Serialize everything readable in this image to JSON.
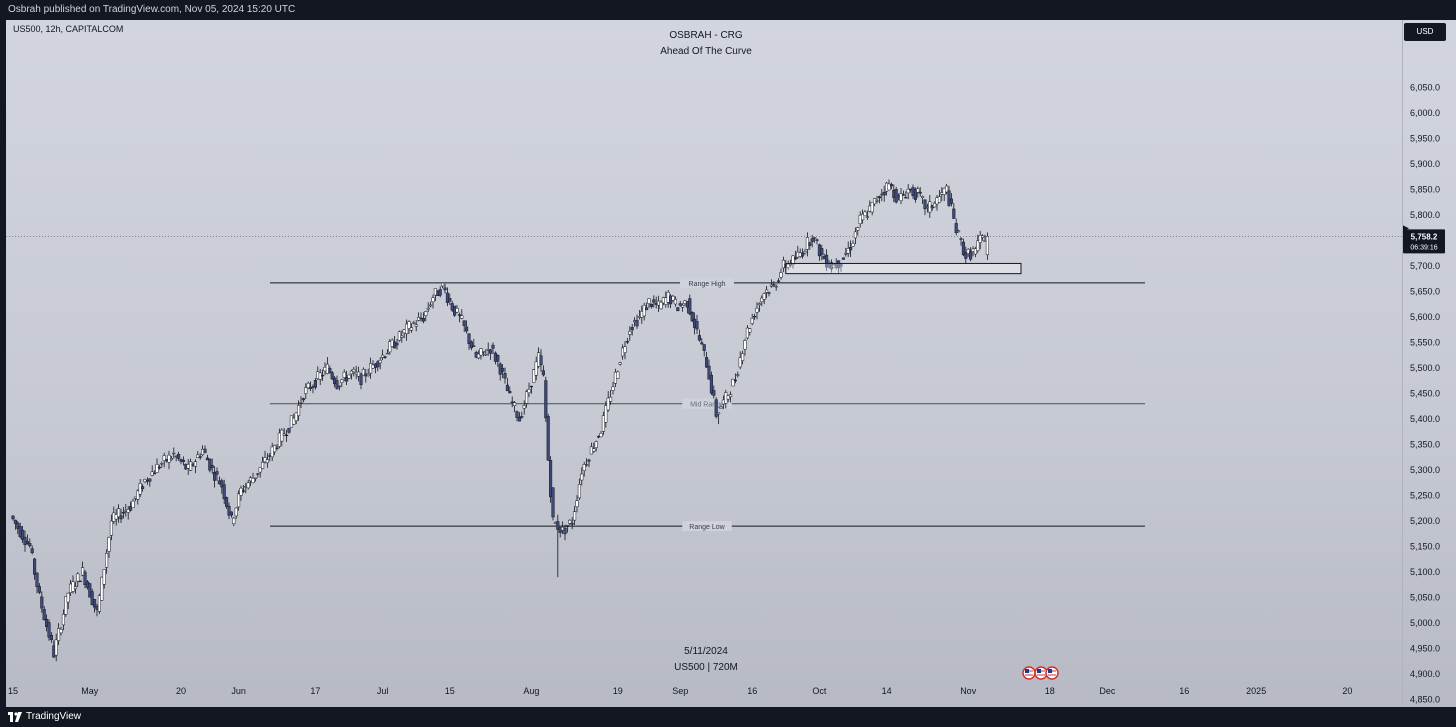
{
  "header": {
    "published_text": "Osbrah published on TradingView.com, Nov 05, 2024 15:20 UTC"
  },
  "chart": {
    "symbol_info": "US500, 12h, CAPITALCOM",
    "title": "OSBRAH - CRG",
    "subtitle": "Ahead Of The Curve",
    "currency_button": "USD",
    "bottom_date": "5/11/2024",
    "bottom_symbol": "US500 | 720M"
  },
  "footer": {
    "brand": "TradingView"
  },
  "chart_data": {
    "type": "candlestick",
    "y_range": [
      4830,
      6100
    ],
    "y_ticks": [
      "6,050.0",
      "6,000.0",
      "5,950.0",
      "5,900.0",
      "5,850.0",
      "5,800.0",
      "5,700.0",
      "5,650.0",
      "5,600.0",
      "5,550.0",
      "5,500.0",
      "5,450.0",
      "5,400.0",
      "5,350.0",
      "5,300.0",
      "5,250.0",
      "5,200.0",
      "5,150.0",
      "5,100.0",
      "5,050.0",
      "5,000.0",
      "4,950.0",
      "4,900.0",
      "4,850.0"
    ],
    "x_ticks": [
      {
        "label": "15",
        "d": 0
      },
      {
        "label": "May",
        "d": 16
      },
      {
        "label": "20",
        "d": 35
      },
      {
        "label": "Jun",
        "d": 47
      },
      {
        "label": "17",
        "d": 63
      },
      {
        "label": "Jul",
        "d": 77
      },
      {
        "label": "15",
        "d": 91
      },
      {
        "label": "Aug",
        "d": 108
      },
      {
        "label": "19",
        "d": 126
      },
      {
        "label": "Sep",
        "d": 139
      },
      {
        "label": "16",
        "d": 154
      },
      {
        "label": "Oct",
        "d": 168
      },
      {
        "label": "14",
        "d": 182
      },
      {
        "label": "Nov",
        "d": 199
      },
      {
        "label": "18",
        "d": 216
      },
      {
        "label": "Dec",
        "d": 228
      },
      {
        "label": "16",
        "d": 244
      },
      {
        "label": "2025",
        "d": 259
      },
      {
        "label": "20",
        "d": 278
      }
    ],
    "current_price": {
      "value": 5758.2,
      "label": "5,758.2",
      "countdown": "06:39:16"
    },
    "levels": [
      {
        "name": "Range High",
        "value": 5667
      },
      {
        "name": "Mid Range",
        "value": 5430
      },
      {
        "name": "Range Low",
        "value": 5190
      }
    ],
    "zone": {
      "top": 5705,
      "bottom": 5685,
      "start_d": 161,
      "end_d": 210
    },
    "anchors": [
      [
        0,
        5210
      ],
      [
        4,
        5150
      ],
      [
        6,
        5050
      ],
      [
        9,
        4940
      ],
      [
        12,
        5060
      ],
      [
        15,
        5100
      ],
      [
        18,
        5020
      ],
      [
        21,
        5200
      ],
      [
        25,
        5230
      ],
      [
        28,
        5280
      ],
      [
        31,
        5310
      ],
      [
        34,
        5330
      ],
      [
        37,
        5300
      ],
      [
        40,
        5340
      ],
      [
        42,
        5300
      ],
      [
        44,
        5270
      ],
      [
        46,
        5200
      ],
      [
        48,
        5260
      ],
      [
        51,
        5290
      ],
      [
        54,
        5330
      ],
      [
        56,
        5360
      ],
      [
        59,
        5400
      ],
      [
        61,
        5450
      ],
      [
        64,
        5480
      ],
      [
        66,
        5500
      ],
      [
        68,
        5470
      ],
      [
        71,
        5490
      ],
      [
        73,
        5480
      ],
      [
        75,
        5500
      ],
      [
        77,
        5520
      ],
      [
        80,
        5550
      ],
      [
        83,
        5580
      ],
      [
        86,
        5600
      ],
      [
        88,
        5640
      ],
      [
        90,
        5660
      ],
      [
        92,
        5620
      ],
      [
        94,
        5590
      ],
      [
        97,
        5520
      ],
      [
        100,
        5540
      ],
      [
        102,
        5500
      ],
      [
        104,
        5440
      ],
      [
        106,
        5400
      ],
      [
        108,
        5460
      ],
      [
        110,
        5520
      ],
      [
        111,
        5480
      ],
      [
        112,
        5320
      ],
      [
        113,
        5200
      ],
      [
        115,
        5180
      ],
      [
        117,
        5200
      ],
      [
        119,
        5300
      ],
      [
        121,
        5340
      ],
      [
        123,
        5380
      ],
      [
        125,
        5450
      ],
      [
        127,
        5520
      ],
      [
        129,
        5580
      ],
      [
        131,
        5600
      ],
      [
        133,
        5630
      ],
      [
        135,
        5620
      ],
      [
        137,
        5640
      ],
      [
        139,
        5620
      ],
      [
        141,
        5630
      ],
      [
        143,
        5570
      ],
      [
        145,
        5510
      ],
      [
        147,
        5410
      ],
      [
        149,
        5440
      ],
      [
        151,
        5480
      ],
      [
        153,
        5560
      ],
      [
        155,
        5610
      ],
      [
        157,
        5650
      ],
      [
        159,
        5660
      ],
      [
        161,
        5700
      ],
      [
        163,
        5710
      ],
      [
        165,
        5730
      ],
      [
        167,
        5760
      ],
      [
        169,
        5720
      ],
      [
        171,
        5700
      ],
      [
        173,
        5710
      ],
      [
        175,
        5740
      ],
      [
        177,
        5790
      ],
      [
        179,
        5810
      ],
      [
        181,
        5840
      ],
      [
        183,
        5860
      ],
      [
        185,
        5830
      ],
      [
        187,
        5850
      ],
      [
        189,
        5840
      ],
      [
        191,
        5810
      ],
      [
        193,
        5830
      ],
      [
        195,
        5850
      ],
      [
        197,
        5770
      ],
      [
        199,
        5720
      ],
      [
        201,
        5730
      ],
      [
        202,
        5750
      ],
      [
        203,
        5758
      ]
    ]
  }
}
